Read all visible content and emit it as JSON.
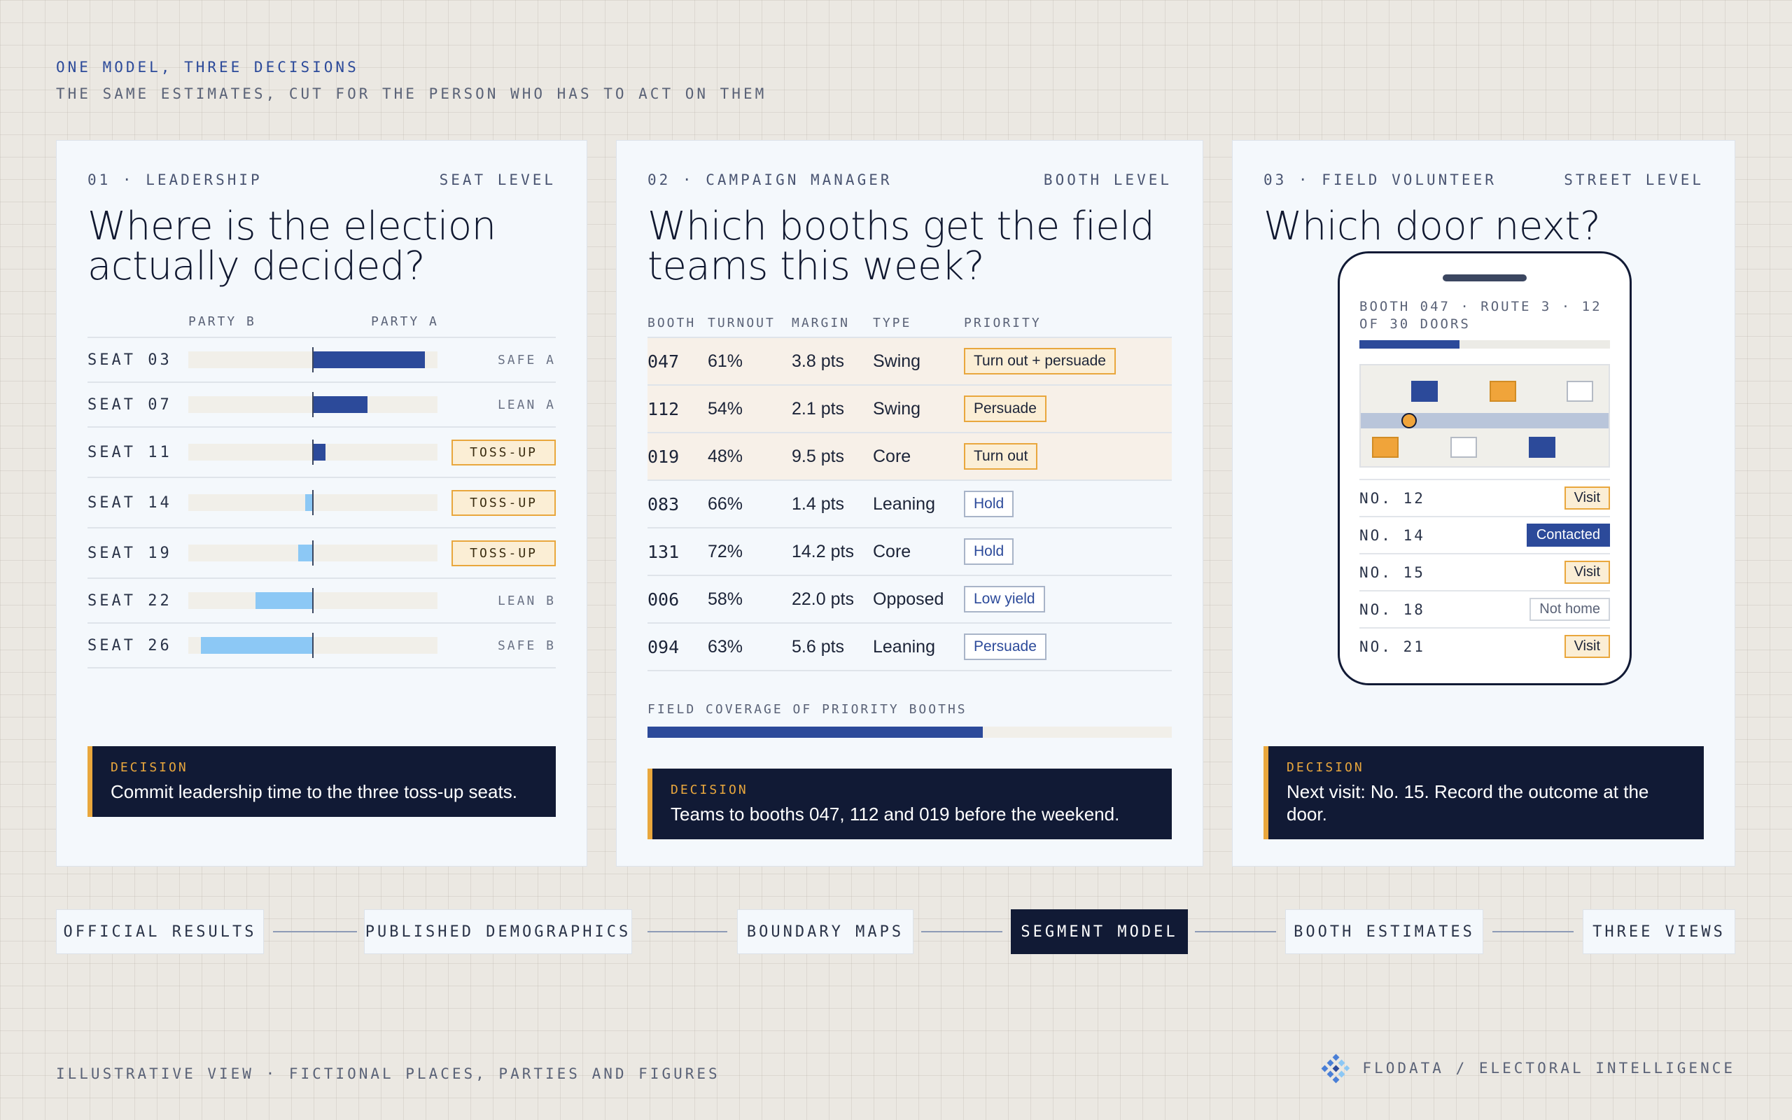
{
  "header": {
    "title": "ONE MODEL, THREE DECISIONS",
    "subtitle": "THE SAME ESTIMATES, CUT FOR THE PERSON WHO HAS TO ACT ON THEM"
  },
  "leadership": {
    "kicker": "01 · LEADERSHIP",
    "level": "SEAT LEVEL",
    "question": "Where is the election actually decided?",
    "col_left": "PARTY B",
    "col_right": "PARTY A",
    "seats": [
      {
        "label": "SEAT 03",
        "margin": 45,
        "status": "SAFE A",
        "tossup": false
      },
      {
        "label": "SEAT 07",
        "margin": 22,
        "status": "LEAN A",
        "tossup": false
      },
      {
        "label": "SEAT 11",
        "margin": 5,
        "status": "TOSS-UP",
        "tossup": true
      },
      {
        "label": "SEAT 14",
        "margin": -3,
        "status": "TOSS-UP",
        "tossup": true
      },
      {
        "label": "SEAT 19",
        "margin": -6,
        "status": "TOSS-UP",
        "tossup": true
      },
      {
        "label": "SEAT 22",
        "margin": -23,
        "status": "LEAN B",
        "tossup": false
      },
      {
        "label": "SEAT 26",
        "margin": -45,
        "status": "SAFE B",
        "tossup": false
      }
    ],
    "decision_label": "DECISION",
    "decision_text": "Commit leadership time to the three toss-up seats."
  },
  "manager": {
    "kicker": "02 · CAMPAIGN MANAGER",
    "level": "BOOTH LEVEL",
    "question": "Which booths get the field teams this week?",
    "columns": [
      "BOOTH",
      "TURNOUT",
      "MARGIN",
      "TYPE",
      "PRIORITY"
    ],
    "rows": [
      {
        "booth": "047",
        "turnout": "61%",
        "margin": "3.8 pts",
        "type": "Swing",
        "priority": "Turn out + persuade",
        "hot": true
      },
      {
        "booth": "112",
        "turnout": "54%",
        "margin": "2.1 pts",
        "type": "Swing",
        "priority": "Persuade",
        "hot": true
      },
      {
        "booth": "019",
        "turnout": "48%",
        "margin": "9.5 pts",
        "type": "Core",
        "priority": "Turn out",
        "hot": true
      },
      {
        "booth": "083",
        "turnout": "66%",
        "margin": "1.4 pts",
        "type": "Leaning",
        "priority": "Hold",
        "hot": false
      },
      {
        "booth": "131",
        "turnout": "72%",
        "margin": "14.2 pts",
        "type": "Core",
        "priority": "Hold",
        "hot": false
      },
      {
        "booth": "006",
        "turnout": "58%",
        "margin": "22.0 pts",
        "type": "Opposed",
        "priority": "Low yield",
        "hot": false
      },
      {
        "booth": "094",
        "turnout": "63%",
        "margin": "5.6 pts",
        "type": "Leaning",
        "priority": "Persuade",
        "hot": false
      }
    ],
    "coverage_label": "FIELD COVERAGE OF PRIORITY BOOTHS",
    "coverage": 0.64,
    "decision_label": "DECISION",
    "decision_text": "Teams to booths 047, 112 and 019 before the weekend."
  },
  "volunteer": {
    "kicker": "03 · FIELD VOLUNTEER",
    "level": "STREET LEVEL",
    "question": "Which door next?",
    "route": "BOOTH 047 · ROUTE 3 · 12 OF 30 DOORS",
    "route_progress": 0.4,
    "doors": [
      {
        "no": "NO. 12",
        "tag": "Visit",
        "kind": "visit"
      },
      {
        "no": "NO. 14",
        "tag": "Contacted",
        "kind": "contacted"
      },
      {
        "no": "NO. 15",
        "tag": "Visit",
        "kind": "visit"
      },
      {
        "no": "NO. 18",
        "tag": "Not home",
        "kind": "nothome"
      },
      {
        "no": "NO. 21",
        "tag": "Visit",
        "kind": "visit"
      }
    ],
    "decision_label": "DECISION",
    "decision_text": "Next visit: No. 15. Record the outcome at the door."
  },
  "pipeline": [
    "OFFICIAL RESULTS",
    "PUBLISHED DEMOGRAPHICS",
    "BOUNDARY MAPS",
    "SEGMENT MODEL",
    "BOOTH ESTIMATES",
    "THREE VIEWS"
  ],
  "pipeline_active": "SEGMENT MODEL",
  "footer": {
    "note": "ILLUSTRATIVE VIEW · FICTIONAL PLACES, PARTIES AND FIGURES",
    "brand": "FLODATA / ELECTORAL INTELLIGENCE"
  },
  "colors": {
    "navy": "#111a35",
    "blue": "#2c4a9a",
    "light_blue": "#8cc8f5",
    "amber": "#e9a73d"
  }
}
